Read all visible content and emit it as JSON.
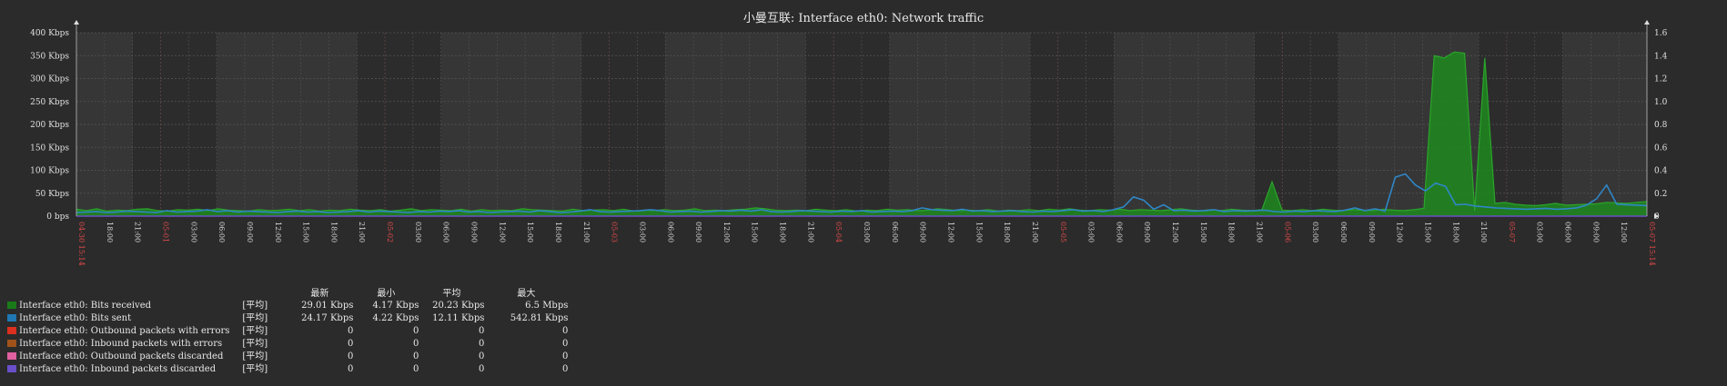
{
  "chart_data": {
    "type": "area",
    "title": "小曼互联: Interface eth0: Network traffic",
    "y_left_ticks": [
      "400 Kbps",
      "350 Kbps",
      "300 Kbps",
      "250 Kbps",
      "200 Kbps",
      "150 Kbps",
      "100 Kbps",
      "50 Kbps",
      "0 bps"
    ],
    "y_left_range": [
      0,
      400
    ],
    "y_right_ticks": [
      "1.6",
      "1.4",
      "1.2",
      "1.0",
      "0.8",
      "0.6",
      "0.4",
      "0.2",
      "0"
    ],
    "y_right_range": [
      0,
      1.6
    ],
    "x_labels": [
      {
        "t": "04-30 15:14",
        "red": true
      },
      {
        "t": "18:00",
        "red": false
      },
      {
        "t": "21:00",
        "red": false
      },
      {
        "t": "05-01",
        "red": true
      },
      {
        "t": "03:00",
        "red": false
      },
      {
        "t": "06:00",
        "red": false
      },
      {
        "t": "09:00",
        "red": false
      },
      {
        "t": "12:00",
        "red": false
      },
      {
        "t": "15:00",
        "red": false
      },
      {
        "t": "18:00",
        "red": false
      },
      {
        "t": "21:00",
        "red": false
      },
      {
        "t": "05-02",
        "red": true
      },
      {
        "t": "03:00",
        "red": false
      },
      {
        "t": "06:00",
        "red": false
      },
      {
        "t": "09:00",
        "red": false
      },
      {
        "t": "12:00",
        "red": false
      },
      {
        "t": "15:00",
        "red": false
      },
      {
        "t": "18:00",
        "red": false
      },
      {
        "t": "21:00",
        "red": false
      },
      {
        "t": "05-03",
        "red": true
      },
      {
        "t": "03:00",
        "red": false
      },
      {
        "t": "06:00",
        "red": false
      },
      {
        "t": "09:00",
        "red": false
      },
      {
        "t": "12:00",
        "red": false
      },
      {
        "t": "15:00",
        "red": false
      },
      {
        "t": "18:00",
        "red": false
      },
      {
        "t": "21:00",
        "red": false
      },
      {
        "t": "05-04",
        "red": true
      },
      {
        "t": "03:00",
        "red": false
      },
      {
        "t": "06:00",
        "red": false
      },
      {
        "t": "09:00",
        "red": false
      },
      {
        "t": "12:00",
        "red": false
      },
      {
        "t": "15:00",
        "red": false
      },
      {
        "t": "18:00",
        "red": false
      },
      {
        "t": "21:00",
        "red": false
      },
      {
        "t": "05-05",
        "red": true
      },
      {
        "t": "03:00",
        "red": false
      },
      {
        "t": "06:00",
        "red": false
      },
      {
        "t": "09:00",
        "red": false
      },
      {
        "t": "12:00",
        "red": false
      },
      {
        "t": "15:00",
        "red": false
      },
      {
        "t": "18:00",
        "red": false
      },
      {
        "t": "21:00",
        "red": false
      },
      {
        "t": "05-06",
        "red": true
      },
      {
        "t": "03:00",
        "red": false
      },
      {
        "t": "06:00",
        "red": false
      },
      {
        "t": "09:00",
        "red": false
      },
      {
        "t": "12:00",
        "red": false
      },
      {
        "t": "15:00",
        "red": false
      },
      {
        "t": "18:00",
        "red": false
      },
      {
        "t": "21:00",
        "red": false
      },
      {
        "t": "05-07",
        "red": true
      },
      {
        "t": "03:00",
        "red": false
      },
      {
        "t": "06:00",
        "red": false
      },
      {
        "t": "09:00",
        "red": false
      },
      {
        "t": "12:00",
        "red": false
      },
      {
        "t": "05-07 15:14",
        "red": true
      }
    ],
    "series": [
      {
        "name": "Interface eth0: Bits received",
        "color": "#1a7a1a",
        "values": [
          15,
          12,
          16,
          11,
          13,
          12,
          15,
          16,
          12,
          11,
          14,
          13,
          15,
          12,
          16,
          13,
          12,
          11,
          14,
          12,
          13,
          15,
          12,
          14,
          11,
          13,
          12,
          15,
          13,
          12,
          14,
          11,
          13,
          16,
          12,
          14,
          13,
          12,
          15,
          11,
          14,
          12,
          13,
          12,
          16,
          14,
          13,
          12,
          11,
          15,
          12,
          13,
          14,
          12,
          15,
          11,
          13,
          12,
          14,
          12,
          13,
          16,
          12,
          13,
          12,
          14,
          15,
          18,
          16,
          13,
          12,
          13,
          12,
          15,
          13,
          12,
          14,
          11,
          13,
          12,
          15,
          13,
          14,
          12,
          13,
          16,
          14,
          12,
          13,
          12,
          14,
          11,
          13,
          12,
          14,
          12,
          15,
          13,
          16,
          13,
          12,
          14,
          13,
          15,
          12,
          14,
          13,
          12,
          14,
          16,
          13,
          12,
          14,
          12,
          15,
          13,
          12,
          14,
          75,
          13,
          12,
          14,
          12,
          15,
          13,
          12,
          14,
          13,
          12,
          15,
          13,
          12,
          14,
          17,
          350,
          345,
          358,
          355,
          12,
          345,
          28,
          30,
          26,
          24,
          23,
          25,
          28,
          24,
          25,
          26,
          27,
          30,
          29,
          28,
          30,
          32
        ]
      },
      {
        "name": "Interface eth0: Bits sent",
        "color": "#1f77b4",
        "values": [
          8,
          9,
          10,
          8,
          9,
          11,
          10,
          9,
          8,
          12,
          9,
          10,
          11,
          14,
          10,
          12,
          9,
          11,
          10,
          9,
          8,
          10,
          11,
          9,
          10,
          8,
          9,
          10,
          12,
          9,
          11,
          10,
          9,
          8,
          10,
          9,
          11,
          10,
          12,
          9,
          10,
          8,
          9,
          10,
          11,
          9,
          12,
          10,
          8,
          9,
          11,
          14,
          10,
          9,
          10,
          11,
          12,
          14,
          12,
          9,
          10,
          11,
          9,
          10,
          12,
          11,
          13,
          11,
          14,
          10,
          9,
          10,
          12,
          11,
          10,
          9,
          11,
          10,
          12,
          9,
          10,
          11,
          10,
          12,
          18,
          14,
          13,
          12,
          15,
          11,
          12,
          10,
          11,
          12,
          10,
          9,
          11,
          10,
          12,
          14,
          11,
          12,
          10,
          14,
          20,
          42,
          35,
          15,
          25,
          12,
          13,
          11,
          12,
          14,
          10,
          12,
          11,
          12,
          13,
          10,
          9,
          11,
          10,
          12,
          11,
          10,
          13,
          18,
          12,
          16,
          11,
          85,
          92,
          68,
          55,
          72,
          65,
          25,
          26,
          22,
          20,
          18,
          17,
          16,
          15,
          16,
          17,
          15,
          16,
          18,
          24,
          38,
          68,
          26,
          25,
          24,
          23
        ]
      },
      {
        "name": "Interface eth0: Outbound packets with errors",
        "color": "#d9301f",
        "values": []
      },
      {
        "name": "Interface eth0: Inbound packets with errors",
        "color": "#a0521a",
        "values": []
      },
      {
        "name": "Interface eth0: Outbound packets discarded",
        "color": "#e060a0",
        "values": []
      },
      {
        "name": "Interface eth0: Inbound packets discarded",
        "color": "#6a4fc8",
        "values": []
      }
    ]
  },
  "legend": {
    "headers": [
      "最新",
      "最小",
      "平均",
      "最大"
    ],
    "rows": [
      {
        "label": "Interface eth0: Bits received",
        "color": "#1a7a1a",
        "func": "[平均]",
        "last": "29.01 Kbps",
        "min": "4.17 Kbps",
        "avg": "20.23 Kbps",
        "max": "6.5 Mbps"
      },
      {
        "label": "Interface eth0: Bits sent",
        "color": "#1f77b4",
        "func": "[平均]",
        "last": "24.17 Kbps",
        "min": "4.22 Kbps",
        "avg": "12.11 Kbps",
        "max": "542.81 Kbps"
      },
      {
        "label": "Interface eth0: Outbound packets with errors",
        "color": "#d9301f",
        "func": "[平均]",
        "last": "0",
        "min": "0",
        "avg": "0",
        "max": "0"
      },
      {
        "label": "Interface eth0: Inbound packets with errors",
        "color": "#a0521a",
        "func": "[平均]",
        "last": "0",
        "min": "0",
        "avg": "0",
        "max": "0"
      },
      {
        "label": "Interface eth0: Outbound packets discarded",
        "color": "#e060a0",
        "func": "[平均]",
        "last": "0",
        "min": "0",
        "avg": "0",
        "max": "0"
      },
      {
        "label": "Interface eth0: Inbound packets discarded",
        "color": "#6a4fc8",
        "func": "[平均]",
        "last": "0",
        "min": "0",
        "avg": "0",
        "max": "0"
      }
    ]
  }
}
